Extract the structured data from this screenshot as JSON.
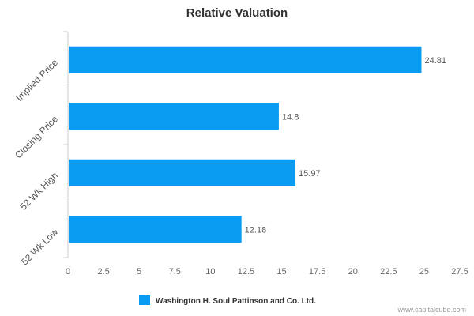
{
  "chart_data": {
    "type": "bar",
    "orientation": "horizontal",
    "title": "Relative Valuation",
    "categories": [
      "Implied Price",
      "Closing Price",
      "52 Wk High",
      "52 Wk Low"
    ],
    "series": [
      {
        "name": "Washington H. Soul Pattinson and Co. Ltd.",
        "values": [
          24.81,
          14.8,
          15.97,
          12.18
        ],
        "color": "#0a9cf2"
      }
    ],
    "data_labels": [
      "24.81",
      "14.8",
      "15.97",
      "12.18"
    ],
    "xlim": [
      0,
      27.5
    ],
    "xticks": [
      "0",
      "2.5",
      "5",
      "7.5",
      "10",
      "12.5",
      "15",
      "17.5",
      "20",
      "22.5",
      "25",
      "27.5"
    ],
    "grid": false,
    "legend_position": "bottom"
  },
  "credit": "www.capitalcube.com"
}
